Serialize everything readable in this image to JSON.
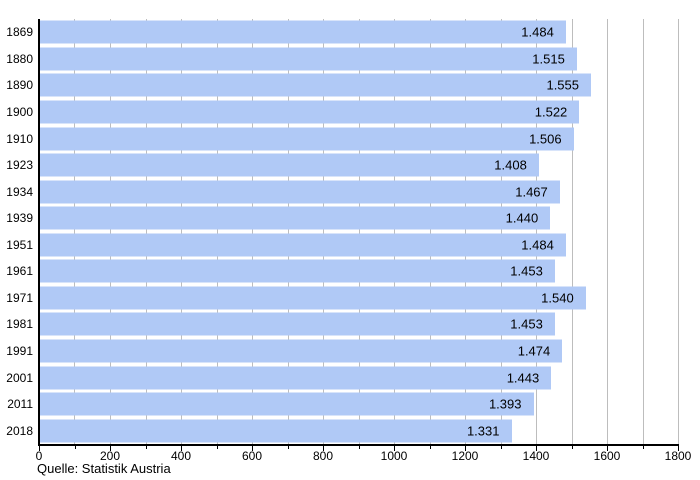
{
  "chart_data": {
    "type": "bar",
    "orientation": "horizontal",
    "title": "",
    "xlabel": "",
    "ylabel": "",
    "categories": [
      "1869",
      "1880",
      "1890",
      "1900",
      "1910",
      "1923",
      "1934",
      "1939",
      "1951",
      "1961",
      "1971",
      "1981",
      "1991",
      "2001",
      "2011",
      "2018"
    ],
    "values": [
      1484,
      1515,
      1555,
      1522,
      1506,
      1408,
      1467,
      1440,
      1484,
      1453,
      1540,
      1453,
      1474,
      1443,
      1393,
      1331
    ],
    "value_labels": [
      "1.484",
      "1.515",
      "1.555",
      "1.522",
      "1.506",
      "1.408",
      "1.467",
      "1.440",
      "1.484",
      "1.453",
      "1.540",
      "1.453",
      "1.474",
      "1.443",
      "1.393",
      "1.331"
    ],
    "xlim": [
      0,
      1800
    ],
    "x_major_step": 200,
    "x_minor_step": 100,
    "x_tick_labels": [
      "0",
      "200",
      "400",
      "600",
      "800",
      "1000",
      "1200",
      "1400",
      "1600",
      "1800"
    ],
    "grid": "vertical gridlines every 100, shown behind bars",
    "legend": "none",
    "bar_color": "#b0c9f6",
    "grid_color": "#bdbdbd",
    "axis_color": "#000000",
    "label_color": "#000000",
    "source_note": "Quelle: Statistik Austria"
  }
}
